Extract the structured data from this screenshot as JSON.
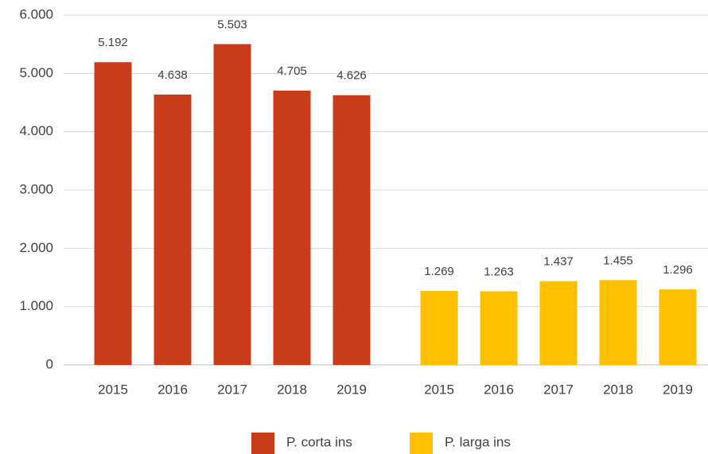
{
  "chart_data": {
    "type": "bar",
    "categories": [
      "2015",
      "2016",
      "2017",
      "2018",
      "2019",
      "2015",
      "2016",
      "2017",
      "2018",
      "2019"
    ],
    "series": [
      {
        "name": "P. corta ins",
        "color": "#c83c1a",
        "values": [
          5192,
          4638,
          5503,
          4705,
          4626,
          null,
          null,
          null,
          null,
          null
        ],
        "value_labels": [
          "5.192",
          "4.638",
          "5.503",
          "4.705",
          "4.626",
          null,
          null,
          null,
          null,
          null
        ]
      },
      {
        "name": "P. larga ins",
        "color": "#ffc000",
        "values": [
          null,
          null,
          null,
          null,
          null,
          1269,
          1263,
          1437,
          1455,
          1296
        ],
        "value_labels": [
          null,
          null,
          null,
          null,
          null,
          "1.269",
          "1.263",
          "1.437",
          "1.455",
          "1.296"
        ]
      }
    ],
    "ylim": [
      0,
      6000
    ],
    "yticks": [
      0,
      {
        "value": 1000,
        "label": "1.000"
      },
      {
        "value": 2000,
        "label": "2.000"
      },
      {
        "value": 3000,
        "label": "3.000"
      },
      {
        "value": 4000,
        "label": "4.000"
      },
      {
        "value": 5000,
        "label": "5.000"
      },
      {
        "value": 6000,
        "label": "6.000"
      }
    ],
    "grid": true,
    "legend": "bottom"
  }
}
